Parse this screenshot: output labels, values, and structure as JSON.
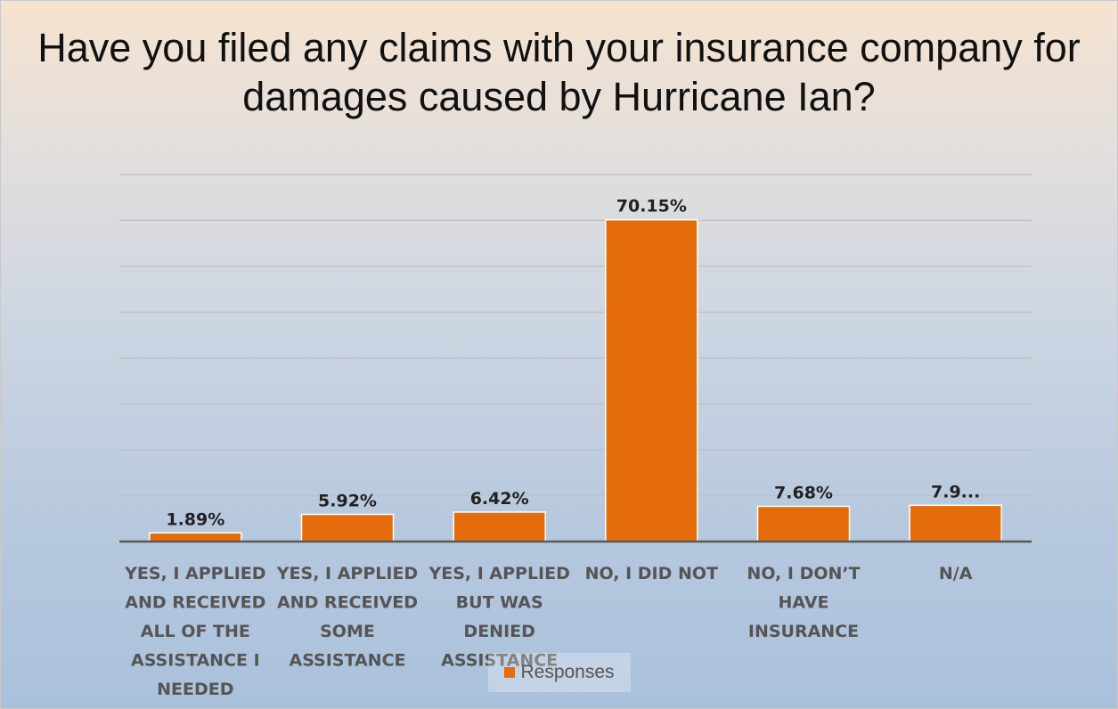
{
  "chart_data": {
    "type": "bar",
    "title": "Have you filed any claims with your insurance company for damages caused by Hurricane Ian?",
    "categories": [
      [
        "YES, I APPLIED",
        "AND RECEIVED",
        "ALL OF THE",
        "ASSISTANCE I",
        "NEEDED"
      ],
      [
        "YES, I APPLIED",
        "AND RECEIVED",
        "SOME",
        "ASSISTANCE"
      ],
      [
        "YES, I APPLIED",
        "BUT WAS",
        "DENIED",
        "ASSISTANCE"
      ],
      [
        "NO, I DID NOT"
      ],
      [
        "NO, I DON’T",
        "HAVE",
        "INSURANCE"
      ],
      [
        "N/A"
      ]
    ],
    "series": [
      {
        "name": "Responses",
        "values": [
          1.89,
          5.92,
          6.42,
          70.15,
          7.68,
          7.9
        ],
        "labels": [
          "1.89%",
          "5.92%",
          "6.42%",
          "70.15%",
          "7.68%",
          "7.9..."
        ],
        "color": "#e46c0a"
      }
    ],
    "ylim": [
      0,
      80
    ],
    "grid": true,
    "legend": "bottom"
  }
}
